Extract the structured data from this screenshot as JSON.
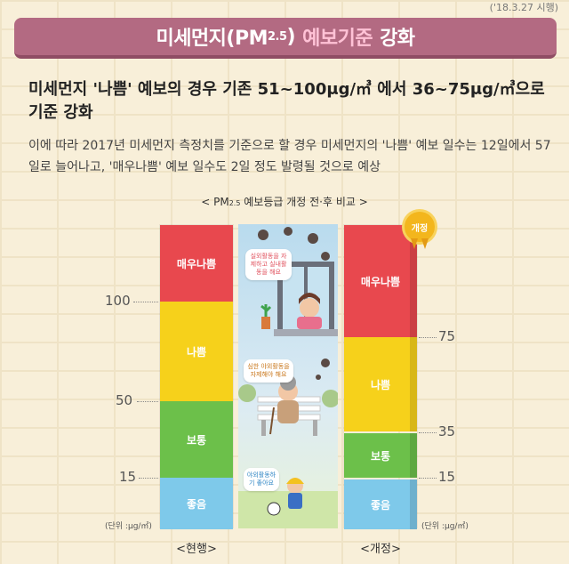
{
  "date_note": "('18.3.27 시행)",
  "banner": {
    "part1": "미세먼지(PM",
    "part1_sub": "2.5",
    "part1_end": ")",
    "part2": "예보기준",
    "part3": "강화"
  },
  "headline": "미세먼지 '나쁨' 예보의 경우 기존 51~100μg/㎥ 에서 36~75μg/㎥으로 기준 강화",
  "description": "이에 따라 2017년 미세먼지 측정치를 기준으로 할 경우 미세먼지의 '나쁨' 예보 일수는 12일에서 57일로 늘어나고, '매우나쁨' 예보 일수도 2일 정도 발령될 것으로 예상",
  "chart_title": {
    "prefix": "< PM",
    "sub": "2.5",
    "suffix": " 예보등급 개정 전·후 비교 >"
  },
  "badge": "개정",
  "illustration": {
    "bubble_top": "실외활동을 자제하고 실내활동을 해요",
    "bubble_mid": "심한 야외활동을 자제해야 해요",
    "bubble_bottom": "야외활동하기 좋아요"
  },
  "colors": {
    "very_bad": "#e8484e",
    "bad": "#f6d11b",
    "normal": "#6cc04a",
    "good": "#7ec9ea"
  },
  "chart_data": {
    "type": "bar",
    "unit": "(단위 :μg/㎥)",
    "series": [
      {
        "name": "<현행>",
        "bands": [
          {
            "label": "좋음",
            "from": 0,
            "to": 15
          },
          {
            "label": "보통",
            "from": 16,
            "to": 50
          },
          {
            "label": "나쁨",
            "from": 51,
            "to": 100
          },
          {
            "label": "매우나쁨",
            "from": 101,
            "to": null
          }
        ],
        "ticks": [
          "15",
          "50",
          "100"
        ]
      },
      {
        "name": "<개정>",
        "bands": [
          {
            "label": "좋음",
            "from": 0,
            "to": 15
          },
          {
            "label": "보통",
            "from": 16,
            "to": 35
          },
          {
            "label": "나쁨",
            "from": 36,
            "to": 75
          },
          {
            "label": "매우나쁨",
            "from": 76,
            "to": null
          }
        ],
        "ticks": [
          "15",
          "35",
          "75"
        ]
      }
    ]
  }
}
